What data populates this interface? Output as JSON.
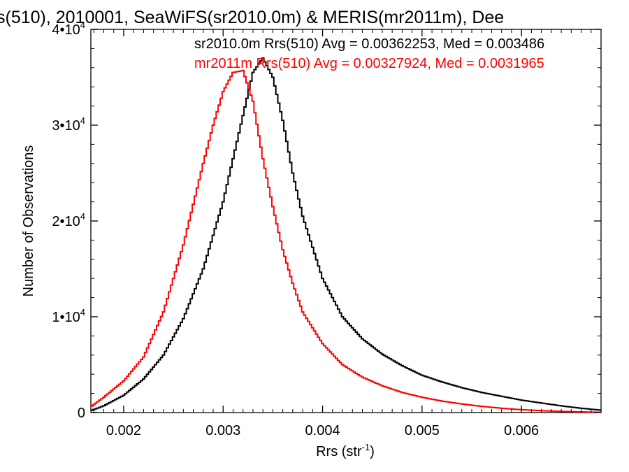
{
  "chart_data": {
    "type": "line",
    "title": "s(510), 2010001, SeaWiFS(sr2010.0m) & MERIS(mr2011m), Dee",
    "xlabel": "Rrs (str",
    "xlabel_sup": "-1",
    "xlabel_end": ")",
    "ylabel": "Number of Observations",
    "xlim": [
      0.00167,
      0.0068
    ],
    "ylim": [
      0,
      40000
    ],
    "x_ticks": [
      {
        "value": 0.002,
        "label": "0.002"
      },
      {
        "value": 0.003,
        "label": "0.003"
      },
      {
        "value": 0.004,
        "label": "0.004"
      },
      {
        "value": 0.005,
        "label": "0.005"
      },
      {
        "value": 0.006,
        "label": "0.006"
      }
    ],
    "y_ticks": [
      {
        "value": 0,
        "mant": "0",
        "exp": ""
      },
      {
        "value": 10000,
        "mant": "1•10",
        "exp": "4"
      },
      {
        "value": 20000,
        "mant": "2•10",
        "exp": "4"
      },
      {
        "value": 30000,
        "mant": "3•10",
        "exp": "4"
      },
      {
        "value": 40000,
        "mant": "4•10",
        "exp": "4"
      }
    ],
    "grid": false,
    "annotations": [
      {
        "text": "sr2010.0m Rrs(510) Avg = 0.00362253, Med = 0.003486",
        "color": "#000000"
      },
      {
        "text": "mr2011m Rrs(510) Avg = 0.00327924, Med = 0.0031965",
        "color": "#ff0000"
      }
    ],
    "series": [
      {
        "color": "#000000",
        "x": [
          0.00167,
          0.0018,
          0.002,
          0.0022,
          0.0024,
          0.0026,
          0.0028,
          0.003,
          0.0031,
          0.0032,
          0.0033,
          0.0034,
          0.0035,
          0.0036,
          0.0037,
          0.0038,
          0.004,
          0.0042,
          0.0044,
          0.0046,
          0.0048,
          0.005,
          0.0052,
          0.0054,
          0.0056,
          0.0058,
          0.006,
          0.0062,
          0.0064,
          0.0066,
          0.0068
        ],
        "y": [
          200,
          700,
          1800,
          3500,
          6000,
          9800,
          15000,
          22000,
          26500,
          31000,
          35500,
          37000,
          35000,
          30500,
          25000,
          20500,
          14000,
          10000,
          7700,
          6100,
          4900,
          3900,
          3200,
          2600,
          2100,
          1700,
          1300,
          1000,
          700,
          450,
          250
        ]
      },
      {
        "color": "#ff0000",
        "x": [
          0.00167,
          0.0018,
          0.002,
          0.0022,
          0.0024,
          0.0026,
          0.0028,
          0.0029,
          0.003,
          0.0031,
          0.0032,
          0.0033,
          0.0034,
          0.0035,
          0.0036,
          0.0037,
          0.0038,
          0.004,
          0.0042,
          0.0044,
          0.0046,
          0.0048,
          0.005,
          0.0052,
          0.0054,
          0.0056,
          0.0058,
          0.006,
          0.0062,
          0.0064,
          0.0066,
          0.0068
        ],
        "y": [
          600,
          1600,
          3300,
          5800,
          10500,
          17500,
          26000,
          30000,
          33500,
          35500,
          35700,
          32500,
          26500,
          21500,
          17000,
          13500,
          10500,
          7200,
          5000,
          3700,
          2800,
          2100,
          1600,
          1200,
          900,
          650,
          450,
          300,
          200,
          120,
          70,
          30
        ]
      }
    ]
  }
}
